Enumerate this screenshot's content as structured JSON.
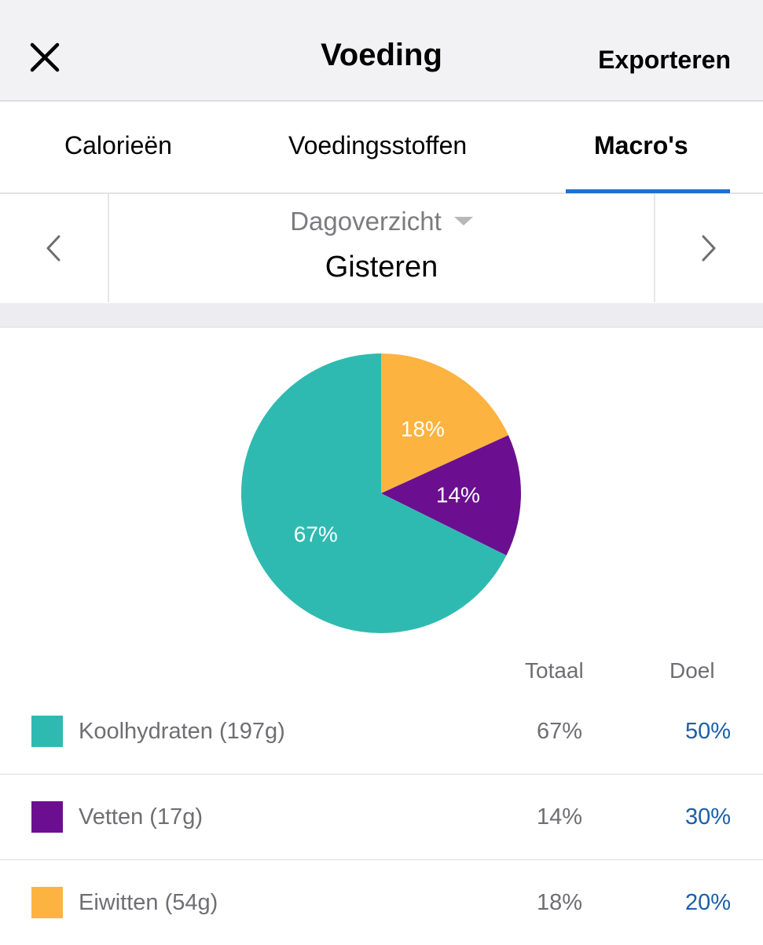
{
  "header": {
    "title": "Voeding",
    "export_label": "Exporteren"
  },
  "tabs": [
    {
      "label": "Calorieën",
      "active": false
    },
    {
      "label": "Voedingsstoffen",
      "active": false
    },
    {
      "label": "Macro's",
      "active": true
    }
  ],
  "date_selector": {
    "period": "Dagoverzicht",
    "date": "Gisteren"
  },
  "colors": {
    "carbs": "#2fbab1",
    "fat": "#6b0f90",
    "protein": "#fdb33f",
    "accent": "#1f6ed4",
    "goal_text": "#1a5fa8"
  },
  "chart_data": {
    "type": "pie",
    "slices": [
      {
        "label": "Eiwitten",
        "value": 18,
        "color": "#fdb33f",
        "text": "18%"
      },
      {
        "label": "Vetten",
        "value": 14,
        "color": "#6b0f90",
        "text": "14%"
      },
      {
        "label": "Koolhydraten",
        "value": 67,
        "color": "#2fbab1",
        "text": "67%"
      }
    ]
  },
  "table": {
    "headers": {
      "total": "Totaal",
      "goal": "Doel"
    },
    "rows": [
      {
        "name": "Koolhydraten (197g)",
        "total": "67%",
        "goal": "50%",
        "color": "#2fbab1"
      },
      {
        "name": "Vetten (17g)",
        "total": "14%",
        "goal": "30%",
        "color": "#6b0f90"
      },
      {
        "name": "Eiwitten (54g)",
        "total": "18%",
        "goal": "20%",
        "color": "#fdb33f"
      }
    ]
  }
}
